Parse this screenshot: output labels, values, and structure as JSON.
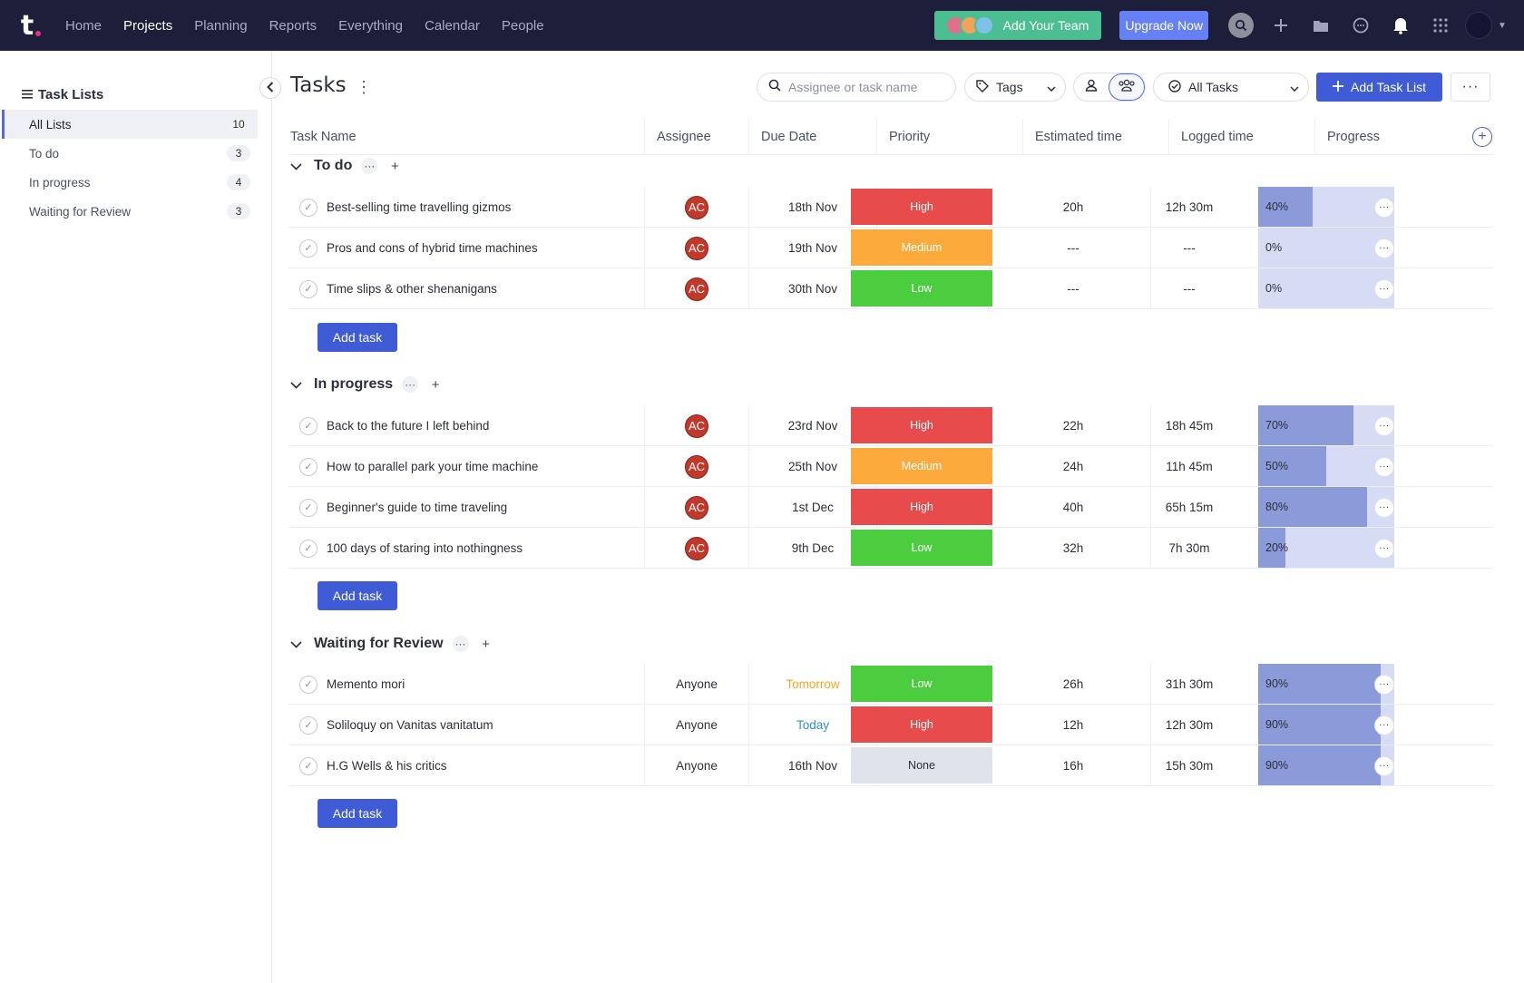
{
  "nav": {
    "items": [
      "Home",
      "Projects",
      "Planning",
      "Reports",
      "Everything",
      "Calendar",
      "People"
    ],
    "active": "Projects",
    "add_team_label": "Add Your Team",
    "upgrade_label": "Upgrade Now"
  },
  "sidebar": {
    "title": "Task Lists",
    "items": [
      {
        "label": "All Lists",
        "count": "10"
      },
      {
        "label": "To do",
        "count": "3"
      },
      {
        "label": "In progress",
        "count": "4"
      },
      {
        "label": "Waiting for Review",
        "count": "3"
      }
    ]
  },
  "header": {
    "title": "Tasks",
    "search_placeholder": "Assignee or task name",
    "tags_label": "Tags",
    "filter_label": "All Tasks",
    "add_list_label": "Add Task List"
  },
  "columns": [
    "Task Name",
    "Assignee",
    "Due Date",
    "Priority",
    "Estimated time",
    "Logged time",
    "Progress"
  ],
  "add_task_label": "Add task",
  "colors": {
    "nav_bg": "#1c1e3a",
    "accent": "#3f5bd6",
    "high": "#e84b4b",
    "medium": "#fdaa3c",
    "low": "#4ccd40",
    "none": "#e1e3ea",
    "due_tomorrow": "#f5a623",
    "due_today": "#2d8fe0"
  },
  "groups": [
    {
      "title": "To do",
      "tasks": [
        {
          "name": "Best-selling time travelling gizmos",
          "assignee": "AC",
          "due": "18th Nov",
          "priority": "High",
          "estimated": "20h",
          "logged": "12h 30m",
          "progress": "40%",
          "progress_value": 40
        },
        {
          "name": "Pros and cons of hybrid time machines",
          "assignee": "AC",
          "due": "19th Nov",
          "priority": "Medium",
          "estimated": "---",
          "logged": "---",
          "progress": "0%",
          "progress_value": 0
        },
        {
          "name": "Time slips & other shenanigans",
          "assignee": "AC",
          "due": "30th Nov",
          "priority": "Low",
          "estimated": "---",
          "logged": "---",
          "progress": "0%",
          "progress_value": 0
        }
      ]
    },
    {
      "title": "In progress",
      "tasks": [
        {
          "name": "Back to the future I left behind",
          "assignee": "AC",
          "due": "23rd Nov",
          "priority": "High",
          "estimated": "22h",
          "logged": "18h 45m",
          "progress": "70%",
          "progress_value": 70
        },
        {
          "name": "How to parallel park your time machine",
          "assignee": "AC",
          "due": "25th Nov",
          "priority": "Medium",
          "estimated": "24h",
          "logged": "11h 45m",
          "progress": "50%",
          "progress_value": 50
        },
        {
          "name": "Beginner's guide to time traveling",
          "assignee": "AC",
          "due": "1st Dec",
          "priority": "High",
          "estimated": "40h",
          "logged": "65h 15m",
          "progress": "80%",
          "progress_value": 80
        },
        {
          "name": "100 days of staring into nothingness",
          "assignee": "AC",
          "due": "9th Dec",
          "priority": "Low",
          "estimated": "32h",
          "logged": "7h 30m",
          "progress": "20%",
          "progress_value": 20
        }
      ]
    },
    {
      "title": "Waiting for Review",
      "tasks": [
        {
          "name": "Memento mori",
          "assignee": "Anyone",
          "due": "Tomorrow",
          "priority": "Low",
          "estimated": "26h",
          "logged": "31h 30m",
          "progress": "90%",
          "progress_value": 90
        },
        {
          "name": "Soliloquy on Vanitas vanitatum",
          "assignee": "Anyone",
          "due": "Today",
          "priority": "High",
          "estimated": "12h",
          "logged": "12h 30m",
          "progress": "90%",
          "progress_value": 90
        },
        {
          "name": "H.G Wells & his critics",
          "assignee": "Anyone",
          "due": "16th Nov",
          "priority": "None",
          "estimated": "16h",
          "logged": "15h 30m",
          "progress": "90%",
          "progress_value": 90
        }
      ]
    }
  ]
}
